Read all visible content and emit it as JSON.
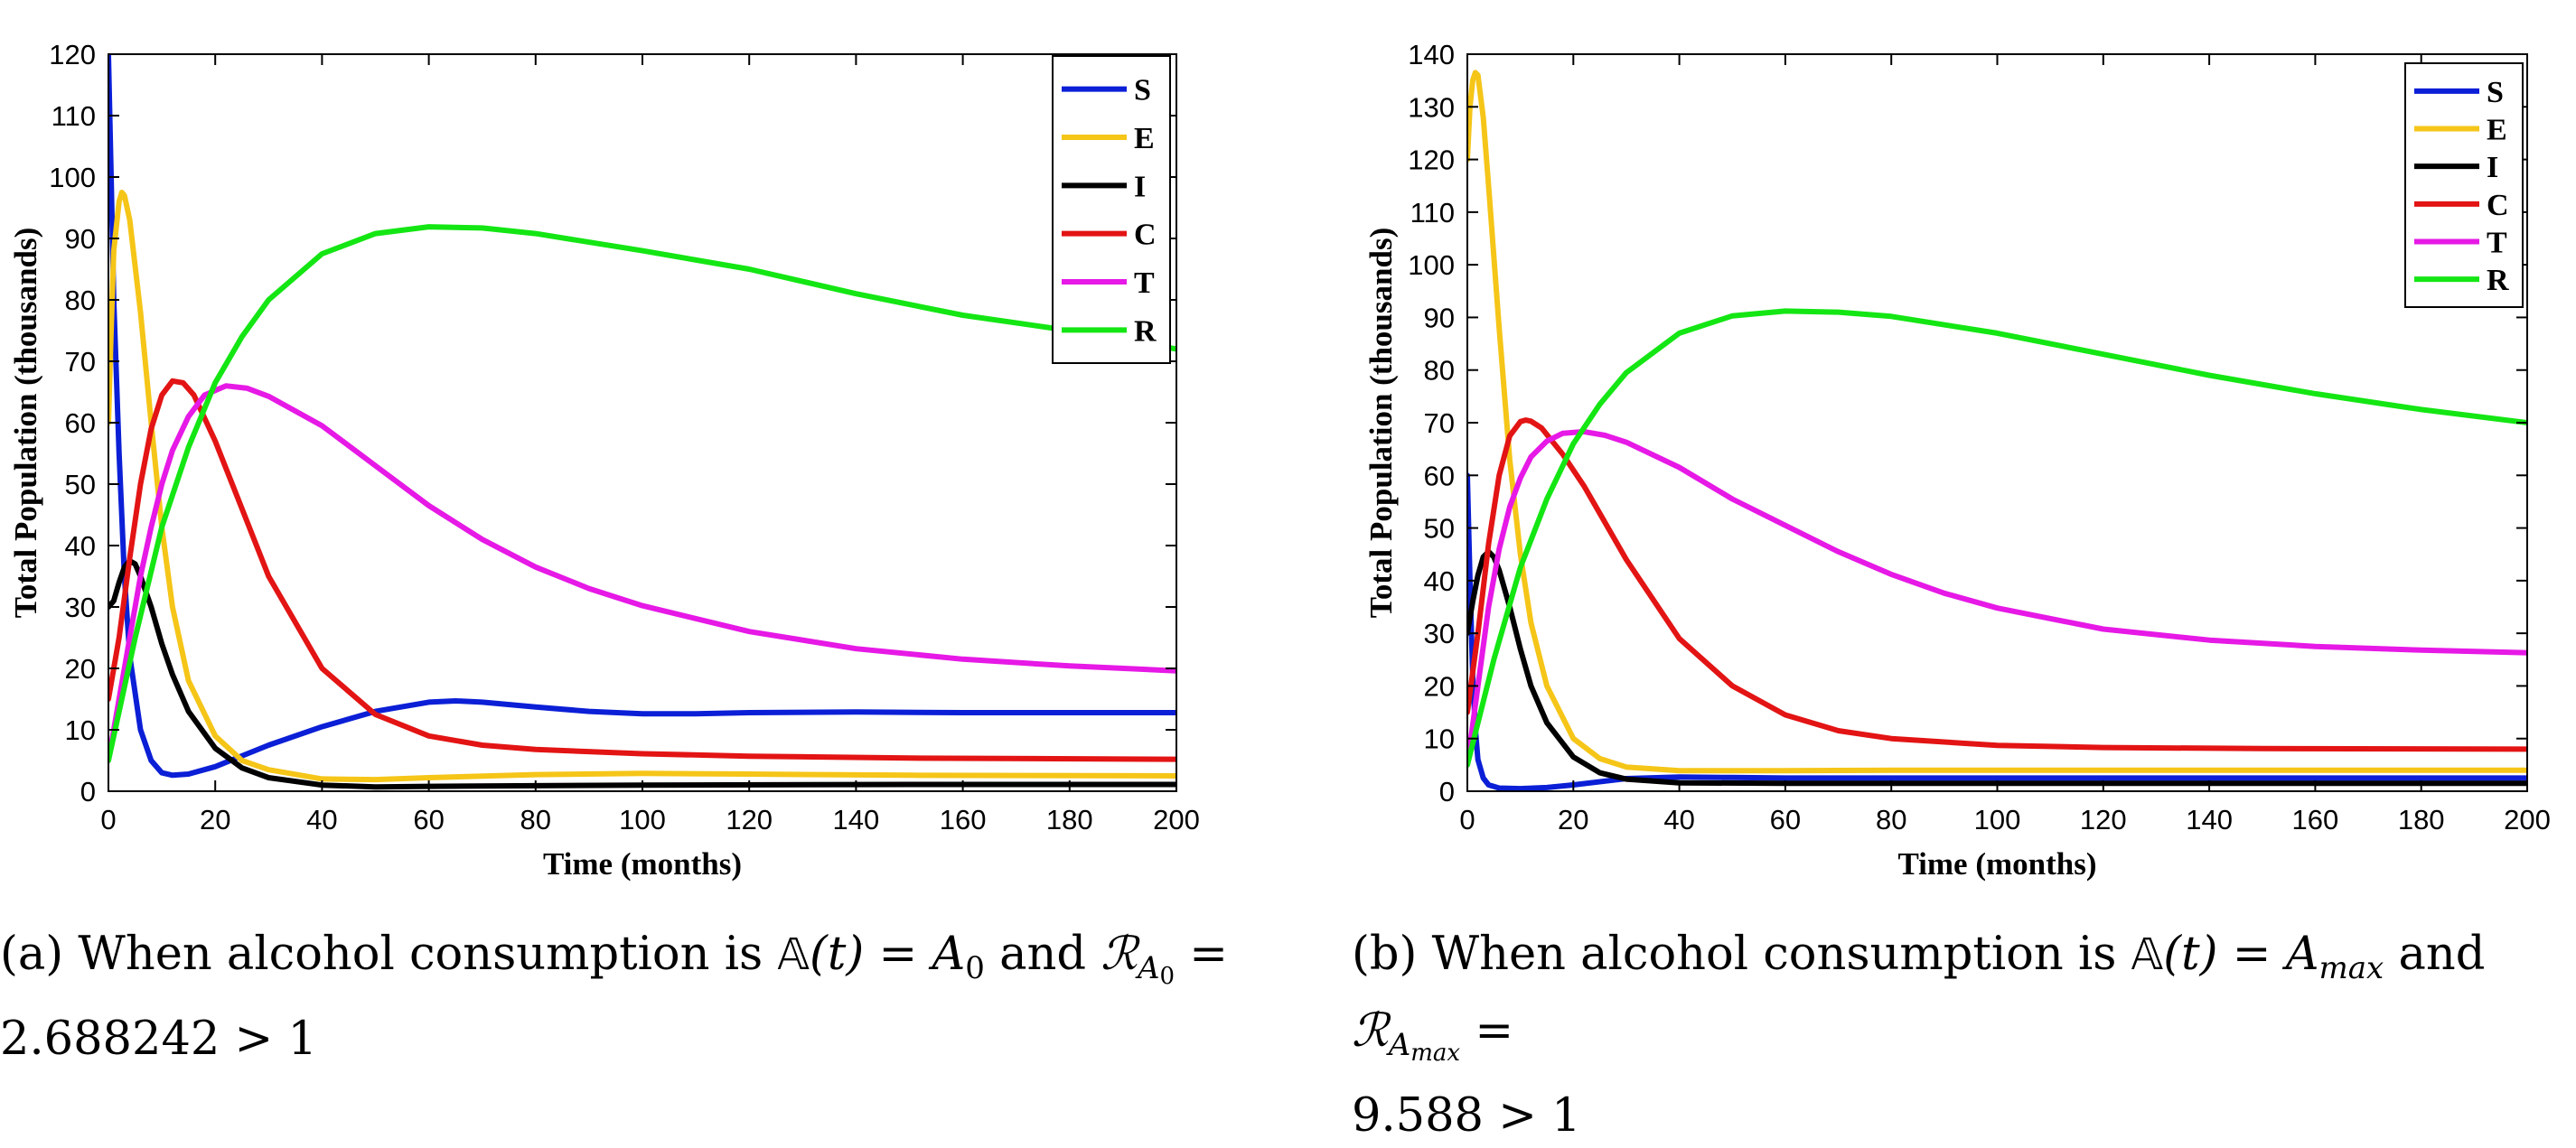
{
  "chart_data": [
    {
      "type": "line",
      "id": "a",
      "xlabel": "Time (months)",
      "ylabel": "Total Population (thousands)",
      "xlim": [
        0,
        200
      ],
      "ylim": [
        0,
        120
      ],
      "xticks": [
        0,
        20,
        40,
        60,
        80,
        100,
        120,
        140,
        160,
        180,
        200
      ],
      "yticks": [
        0,
        10,
        20,
        30,
        40,
        50,
        60,
        70,
        80,
        90,
        100,
        110,
        120
      ],
      "legend_position": "top-right",
      "series": [
        {
          "name": "S",
          "color": "#0b1fd6",
          "points": [
            [
              0,
              120
            ],
            [
              0.5,
              100
            ],
            [
              1,
              80
            ],
            [
              2,
              55
            ],
            [
              3,
              35
            ],
            [
              4,
              22
            ],
            [
              6,
              10
            ],
            [
              8,
              5
            ],
            [
              10,
              3
            ],
            [
              12,
              2.6
            ],
            [
              15,
              2.8
            ],
            [
              20,
              4
            ],
            [
              30,
              7.5
            ],
            [
              40,
              10.5
            ],
            [
              50,
              13
            ],
            [
              60,
              14.5
            ],
            [
              65,
              14.7
            ],
            [
              70,
              14.5
            ],
            [
              80,
              13.7
            ],
            [
              90,
              13
            ],
            [
              100,
              12.6
            ],
            [
              110,
              12.6
            ],
            [
              120,
              12.8
            ],
            [
              140,
              12.9
            ],
            [
              160,
              12.8
            ],
            [
              180,
              12.8
            ],
            [
              200,
              12.8
            ]
          ]
        },
        {
          "name": "E",
          "color": "#f5c518",
          "points": [
            [
              0,
              60
            ],
            [
              0.5,
              75
            ],
            [
              1,
              88
            ],
            [
              2,
              96
            ],
            [
              2.5,
              97.5
            ],
            [
              3,
              97
            ],
            [
              4,
              93
            ],
            [
              6,
              78
            ],
            [
              8,
              60
            ],
            [
              10,
              43
            ],
            [
              12,
              30
            ],
            [
              15,
              18
            ],
            [
              20,
              9
            ],
            [
              25,
              5
            ],
            [
              30,
              3.5
            ],
            [
              40,
              2
            ],
            [
              50,
              1.9
            ],
            [
              60,
              2.2
            ],
            [
              80,
              2.7
            ],
            [
              100,
              2.9
            ],
            [
              120,
              2.8
            ],
            [
              150,
              2.6
            ],
            [
              200,
              2.5
            ]
          ]
        },
        {
          "name": "I",
          "color": "#000000",
          "points": [
            [
              0,
              30
            ],
            [
              1,
              31
            ],
            [
              2,
              34
            ],
            [
              3,
              36.5
            ],
            [
              4,
              37.5
            ],
            [
              5,
              37
            ],
            [
              6,
              35
            ],
            [
              8,
              30
            ],
            [
              10,
              24
            ],
            [
              12,
              19
            ],
            [
              15,
              13
            ],
            [
              20,
              7
            ],
            [
              25,
              3.8
            ],
            [
              30,
              2.2
            ],
            [
              40,
              1
            ],
            [
              50,
              0.7
            ],
            [
              60,
              0.8
            ],
            [
              80,
              0.9
            ],
            [
              100,
              1
            ],
            [
              150,
              1.1
            ],
            [
              200,
              1.1
            ]
          ]
        },
        {
          "name": "C",
          "color": "#e31414",
          "points": [
            [
              0,
              15
            ],
            [
              2,
              25
            ],
            [
              4,
              38
            ],
            [
              6,
              50
            ],
            [
              8,
              59
            ],
            [
              10,
              64.5
            ],
            [
              12,
              66.8
            ],
            [
              14,
              66.5
            ],
            [
              16,
              64.5
            ],
            [
              20,
              57
            ],
            [
              25,
              46
            ],
            [
              30,
              35
            ],
            [
              40,
              20
            ],
            [
              50,
              12.5
            ],
            [
              60,
              9
            ],
            [
              70,
              7.5
            ],
            [
              80,
              6.8
            ],
            [
              100,
              6.1
            ],
            [
              120,
              5.7
            ],
            [
              150,
              5.4
            ],
            [
              200,
              5.2
            ]
          ]
        },
        {
          "name": "T",
          "color": "#e619e6",
          "points": [
            [
              0,
              5
            ],
            [
              2,
              15
            ],
            [
              4,
              25
            ],
            [
              6,
              35
            ],
            [
              8,
              43
            ],
            [
              10,
              50
            ],
            [
              12,
              55.5
            ],
            [
              15,
              61
            ],
            [
              18,
              64.5
            ],
            [
              22,
              66
            ],
            [
              26,
              65.6
            ],
            [
              30,
              64.3
            ],
            [
              40,
              59.5
            ],
            [
              50,
              53
            ],
            [
              60,
              46.5
            ],
            [
              70,
              41
            ],
            [
              80,
              36.5
            ],
            [
              90,
              33
            ],
            [
              100,
              30.2
            ],
            [
              120,
              26
            ],
            [
              140,
              23.2
            ],
            [
              160,
              21.5
            ],
            [
              180,
              20.4
            ],
            [
              200,
              19.6
            ]
          ]
        },
        {
          "name": "R",
          "color": "#14e614",
          "points": [
            [
              0,
              5
            ],
            [
              5,
              25
            ],
            [
              10,
              43
            ],
            [
              15,
              56
            ],
            [
              20,
              66.5
            ],
            [
              25,
              74
            ],
            [
              30,
              80
            ],
            [
              40,
              87.5
            ],
            [
              50,
              90.8
            ],
            [
              60,
              91.9
            ],
            [
              70,
              91.7
            ],
            [
              80,
              90.8
            ],
            [
              100,
              88
            ],
            [
              120,
              85
            ],
            [
              140,
              81
            ],
            [
              160,
              77.5
            ],
            [
              180,
              75
            ],
            [
              200,
              72
            ]
          ]
        }
      ]
    },
    {
      "type": "line",
      "id": "b",
      "xlabel": "Time (months)",
      "ylabel": "Total Population (thousands)",
      "xlim": [
        0,
        200
      ],
      "ylim": [
        0,
        140
      ],
      "xticks": [
        0,
        20,
        40,
        60,
        80,
        100,
        120,
        140,
        160,
        180,
        200
      ],
      "yticks": [
        0,
        10,
        20,
        30,
        40,
        50,
        60,
        70,
        80,
        90,
        100,
        110,
        120,
        130,
        140
      ],
      "legend_position": "top-right",
      "series": [
        {
          "name": "S",
          "color": "#0b1fd6",
          "points": [
            [
              0,
              60
            ],
            [
              0.5,
              40
            ],
            [
              1,
              22
            ],
            [
              1.5,
              12
            ],
            [
              2,
              6
            ],
            [
              3,
              2.5
            ],
            [
              4,
              1.2
            ],
            [
              6,
              0.6
            ],
            [
              10,
              0.5
            ],
            [
              15,
              0.7
            ],
            [
              20,
              1.2
            ],
            [
              30,
              2.4
            ],
            [
              40,
              2.7
            ],
            [
              50,
              2.6
            ],
            [
              60,
              2.5
            ],
            [
              80,
              2.5
            ],
            [
              100,
              2.5
            ],
            [
              150,
              2.5
            ],
            [
              200,
              2.5
            ]
          ]
        },
        {
          "name": "E",
          "color": "#f5c518",
          "points": [
            [
              0,
              120
            ],
            [
              0.5,
              130
            ],
            [
              1,
              135
            ],
            [
              1.5,
              136.5
            ],
            [
              2,
              136
            ],
            [
              3,
              128
            ],
            [
              4,
              115
            ],
            [
              6,
              88
            ],
            [
              8,
              63
            ],
            [
              10,
              45
            ],
            [
              12,
              32
            ],
            [
              15,
              20
            ],
            [
              20,
              10
            ],
            [
              25,
              6.2
            ],
            [
              30,
              4.6
            ],
            [
              40,
              3.9
            ],
            [
              60,
              3.9
            ],
            [
              80,
              4
            ],
            [
              100,
              4
            ],
            [
              150,
              4
            ],
            [
              200,
              4
            ]
          ]
        },
        {
          "name": "I",
          "color": "#000000",
          "points": [
            [
              0,
              30
            ],
            [
              1,
              36
            ],
            [
              2,
              41
            ],
            [
              3,
              44.5
            ],
            [
              4,
              45.5
            ],
            [
              5,
              44.5
            ],
            [
              6,
              42
            ],
            [
              8,
              35
            ],
            [
              10,
              27
            ],
            [
              12,
              20
            ],
            [
              15,
              13
            ],
            [
              20,
              6.5
            ],
            [
              25,
              3.5
            ],
            [
              30,
              2.3
            ],
            [
              40,
              1.6
            ],
            [
              60,
              1.5
            ],
            [
              100,
              1.5
            ],
            [
              200,
              1.5
            ]
          ]
        },
        {
          "name": "C",
          "color": "#e31414",
          "points": [
            [
              0,
              15
            ],
            [
              2,
              30
            ],
            [
              4,
              47
            ],
            [
              6,
              60
            ],
            [
              8,
              67.5
            ],
            [
              10,
              70.2
            ],
            [
              11,
              70.5
            ],
            [
              12,
              70.3
            ],
            [
              14,
              69
            ],
            [
              18,
              64
            ],
            [
              22,
              58
            ],
            [
              26,
              51
            ],
            [
              30,
              44
            ],
            [
              40,
              29
            ],
            [
              50,
              20
            ],
            [
              60,
              14.5
            ],
            [
              70,
              11.5
            ],
            [
              80,
              10
            ],
            [
              100,
              8.7
            ],
            [
              120,
              8.3
            ],
            [
              150,
              8.1
            ],
            [
              200,
              8
            ]
          ]
        },
        {
          "name": "T",
          "color": "#e619e6",
          "points": [
            [
              0,
              5
            ],
            [
              2,
              20
            ],
            [
              4,
              35
            ],
            [
              6,
              46
            ],
            [
              8,
              54
            ],
            [
              10,
              59.5
            ],
            [
              12,
              63.5
            ],
            [
              15,
              66.5
            ],
            [
              18,
              68
            ],
            [
              22,
              68.3
            ],
            [
              26,
              67.6
            ],
            [
              30,
              66.3
            ],
            [
              40,
              61.5
            ],
            [
              50,
              55.5
            ],
            [
              60,
              50.5
            ],
            [
              70,
              45.5
            ],
            [
              80,
              41.2
            ],
            [
              90,
              37.6
            ],
            [
              100,
              34.8
            ],
            [
              120,
              30.8
            ],
            [
              140,
              28.7
            ],
            [
              160,
              27.5
            ],
            [
              180,
              26.8
            ],
            [
              200,
              26.3
            ]
          ]
        },
        {
          "name": "R",
          "color": "#14e614",
          "points": [
            [
              0,
              5
            ],
            [
              5,
              25
            ],
            [
              10,
              42.5
            ],
            [
              15,
              55.5
            ],
            [
              20,
              66
            ],
            [
              25,
              73.5
            ],
            [
              30,
              79.5
            ],
            [
              40,
              87
            ],
            [
              50,
              90.3
            ],
            [
              60,
              91.2
            ],
            [
              70,
              91
            ],
            [
              80,
              90.2
            ],
            [
              100,
              87
            ],
            [
              120,
              83
            ],
            [
              140,
              79
            ],
            [
              160,
              75.5
            ],
            [
              180,
              72.5
            ],
            [
              200,
              70
            ]
          ]
        }
      ]
    }
  ],
  "captions": {
    "a": {
      "label": "(a)",
      "text_before": "When alcohol consumption is",
      "func_symbol": "𝔸",
      "func_arg": "(t)",
      "equals": "=",
      "value_base": "A",
      "value_sub": "0",
      "and_word": "and",
      "ratio_symbol": "ℛ",
      "ratio_sub_base": "A",
      "ratio_sub_sub": "0",
      "ratio_value": "2.688242 > 1"
    },
    "b": {
      "label": "(b)",
      "text_before": "When alcohol consumption is",
      "func_symbol": "𝔸",
      "func_arg": "(t)",
      "equals": "=",
      "value_base": "A",
      "value_sub": "max",
      "and_word": "and",
      "ratio_symbol": "ℛ",
      "ratio_sub_base": "A",
      "ratio_sub_sub": "max",
      "ratio_value": "9.588 > 1"
    }
  }
}
